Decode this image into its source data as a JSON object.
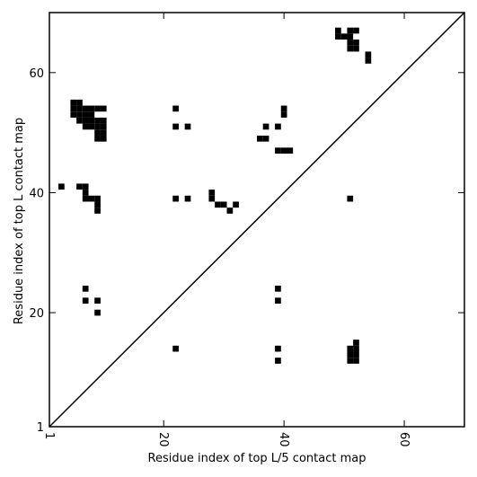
{
  "chart_data": {
    "type": "scatter",
    "title": "",
    "xlabel": "Residue index of top L/5 contact map",
    "ylabel": "Residue index of top L contact map",
    "xlim": [
      1,
      70
    ],
    "ylim": [
      1,
      70
    ],
    "xticks": [
      {
        "value": 1,
        "label": "1"
      },
      {
        "value": 20,
        "label": "20"
      },
      {
        "value": 40,
        "label": "40"
      },
      {
        "value": 60,
        "label": "60"
      }
    ],
    "yticks": [
      {
        "value": 1,
        "label": "1"
      },
      {
        "value": 20,
        "label": "20"
      },
      {
        "value": 40,
        "label": "40"
      },
      {
        "value": 60,
        "label": "60"
      }
    ],
    "diagonal": {
      "from": [
        1,
        1
      ],
      "to": [
        70,
        70
      ]
    },
    "grid": false,
    "marker_color": "#000000",
    "series": [
      {
        "points": [
          [
            5,
            54
          ],
          [
            6,
            54
          ],
          [
            7,
            54
          ],
          [
            8,
            54
          ],
          [
            9,
            54
          ],
          [
            10,
            54
          ],
          [
            5,
            55
          ],
          [
            6,
            55
          ],
          [
            5,
            53
          ],
          [
            6,
            53
          ],
          [
            7,
            53
          ],
          [
            8,
            53
          ],
          [
            6,
            52
          ],
          [
            7,
            52
          ],
          [
            8,
            52
          ],
          [
            9,
            52
          ],
          [
            10,
            52
          ],
          [
            7,
            51
          ],
          [
            8,
            51
          ],
          [
            9,
            51
          ],
          [
            10,
            51
          ],
          [
            9,
            50
          ],
          [
            10,
            50
          ],
          [
            9,
            49
          ],
          [
            10,
            49
          ],
          [
            6,
            41
          ],
          [
            7,
            41
          ],
          [
            3,
            41
          ],
          [
            7,
            40
          ],
          [
            7,
            39
          ],
          [
            8,
            39
          ],
          [
            9,
            39
          ],
          [
            9,
            38
          ],
          [
            9,
            37
          ],
          [
            7,
            24
          ],
          [
            7,
            22
          ],
          [
            9,
            22
          ],
          [
            9,
            20
          ],
          [
            22,
            54
          ],
          [
            22,
            51
          ],
          [
            24,
            51
          ],
          [
            22,
            39
          ],
          [
            24,
            39
          ],
          [
            22,
            14
          ],
          [
            28,
            40
          ],
          [
            28,
            39
          ],
          [
            29,
            38
          ],
          [
            30,
            38
          ],
          [
            31,
            37
          ],
          [
            32,
            38
          ],
          [
            36,
            49
          ],
          [
            37,
            49
          ],
          [
            37,
            51
          ],
          [
            39,
            51
          ],
          [
            40,
            54
          ],
          [
            40,
            53
          ],
          [
            39,
            47
          ],
          [
            40,
            47
          ],
          [
            41,
            47
          ],
          [
            39,
            24
          ],
          [
            39,
            22
          ],
          [
            39,
            14
          ],
          [
            39,
            12
          ],
          [
            49,
            67
          ],
          [
            49,
            66
          ],
          [
            50,
            66
          ],
          [
            51,
            66
          ],
          [
            51,
            67
          ],
          [
            52,
            67
          ],
          [
            51,
            65
          ],
          [
            52,
            65
          ],
          [
            51,
            64
          ],
          [
            52,
            64
          ],
          [
            54,
            63
          ],
          [
            54,
            62
          ],
          [
            51,
            39
          ],
          [
            51,
            14
          ],
          [
            52,
            14
          ],
          [
            51,
            13
          ],
          [
            52,
            13
          ],
          [
            51,
            12
          ],
          [
            52,
            12
          ],
          [
            52,
            15
          ]
        ]
      }
    ]
  }
}
